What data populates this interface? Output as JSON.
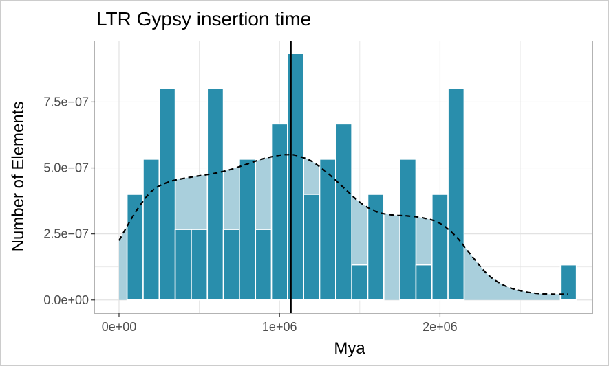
{
  "chart_data": {
    "type": "bar",
    "title": "LTR Gypsy insertion time",
    "xlabel": "Mya",
    "ylabel": "Number of Elements",
    "xlim": [
      -150000,
      2950000
    ],
    "ylim": [
      -5e-08,
      9.8e-07
    ],
    "x_ticks": [
      {
        "value": 0,
        "label": "0e+00"
      },
      {
        "value": 1000000,
        "label": "1e+06"
      },
      {
        "value": 2000000,
        "label": "2e+06"
      }
    ],
    "y_ticks": [
      {
        "value": 0,
        "label": "0.0e+00"
      },
      {
        "value": 2.5e-07,
        "label": "2.5e−07"
      },
      {
        "value": 5e-07,
        "label": "5.0e−07"
      },
      {
        "value": 7.5e-07,
        "label": "7.5e−07"
      }
    ],
    "grid": true,
    "bin_width": 100000,
    "bins": [
      {
        "x": 100000,
        "value": 4e-07
      },
      {
        "x": 200000,
        "value": 5.33e-07
      },
      {
        "x": 300000,
        "value": 8e-07
      },
      {
        "x": 400000,
        "value": 2.67e-07
      },
      {
        "x": 500000,
        "value": 2.67e-07
      },
      {
        "x": 600000,
        "value": 8e-07
      },
      {
        "x": 700000,
        "value": 2.67e-07
      },
      {
        "x": 800000,
        "value": 5.33e-07
      },
      {
        "x": 900000,
        "value": 2.67e-07
      },
      {
        "x": 1000000,
        "value": 6.67e-07
      },
      {
        "x": 1100000,
        "value": 9.33e-07
      },
      {
        "x": 1200000,
        "value": 4e-07
      },
      {
        "x": 1300000,
        "value": 5.33e-07
      },
      {
        "x": 1400000,
        "value": 6.67e-07
      },
      {
        "x": 1500000,
        "value": 1.33e-07
      },
      {
        "x": 1600000,
        "value": 4e-07
      },
      {
        "x": 1700000,
        "value": 0
      },
      {
        "x": 1800000,
        "value": 5.33e-07
      },
      {
        "x": 1900000,
        "value": 1.33e-07
      },
      {
        "x": 2000000,
        "value": 4e-07
      },
      {
        "x": 2100000,
        "value": 8e-07
      },
      {
        "x": 2200000,
        "value": 0
      },
      {
        "x": 2300000,
        "value": 0
      },
      {
        "x": 2400000,
        "value": 0
      },
      {
        "x": 2500000,
        "value": 0
      },
      {
        "x": 2600000,
        "value": 0
      },
      {
        "x": 2700000,
        "value": 0
      },
      {
        "x": 2800000,
        "value": 1.33e-07
      }
    ],
    "density": {
      "x": [
        0,
        100000,
        200000,
        300000,
        400000,
        500000,
        600000,
        700000,
        800000,
        900000,
        1000000,
        1050000,
        1100000,
        1200000,
        1300000,
        1400000,
        1500000,
        1600000,
        1700000,
        1800000,
        1900000,
        2000000,
        2100000,
        2200000,
        2300000,
        2400000,
        2500000,
        2600000,
        2700000,
        2800000
      ],
      "y": [
        2.25e-07,
        3.3e-07,
        4.1e-07,
        4.45e-07,
        4.6e-07,
        4.7e-07,
        4.8e-07,
        4.95e-07,
        5.15e-07,
        5.35e-07,
        5.48e-07,
        5.5e-07,
        5.48e-07,
        5.25e-07,
        4.8e-07,
        4.25e-07,
        3.7e-07,
        3.35e-07,
        3.22e-07,
        3.18e-07,
        3.1e-07,
        2.9e-07,
        2.4e-07,
        1.65e-07,
        9.5e-08,
        5.5e-08,
        3.5e-08,
        2.5e-08,
        2.2e-08,
        2.2e-08
      ]
    },
    "vline_x": 1070000,
    "colors": {
      "bar": "#298EAC",
      "density_fill": "#A9CFDC",
      "grid": "#E2E2E2",
      "panel_border": "#B3B3B3",
      "line": "#000000"
    }
  }
}
